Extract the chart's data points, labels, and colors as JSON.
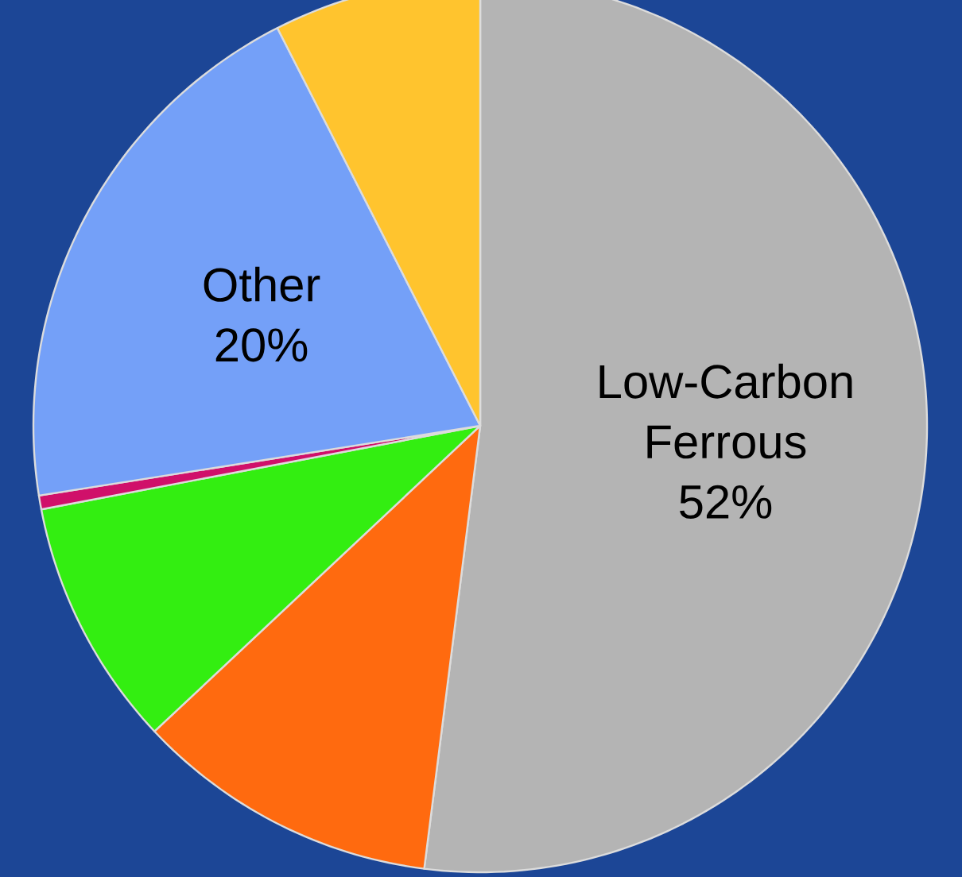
{
  "chart_data": {
    "type": "pie",
    "categories": [
      "Low-Carbon Ferrous",
      null,
      null,
      null,
      "Other",
      null
    ],
    "values": [
      52,
      11,
      9,
      0.5,
      20,
      7.5
    ],
    "colors": [
      "#b4b4b4",
      "#ff6a0f",
      "#33ee11",
      "#d0106a",
      "#74a0f8",
      "#ffc42e"
    ],
    "value_labels": [
      "52%",
      null,
      null,
      null,
      "20%",
      null
    ]
  }
}
